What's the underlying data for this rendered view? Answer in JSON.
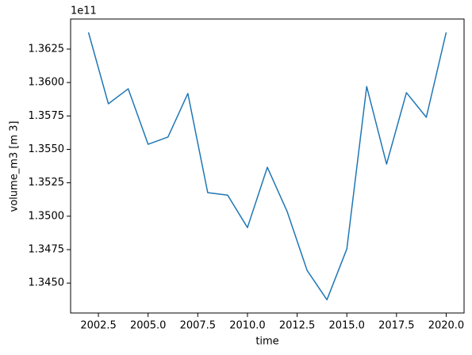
{
  "chart_data": {
    "type": "line",
    "xlabel": "time",
    "ylabel": "volume_m3 [m 3]",
    "y_offset_text": "1e11",
    "x": [
      2002,
      2003,
      2004,
      2005,
      2006,
      2007,
      2008,
      2009,
      2010,
      2011,
      2012,
      2013,
      2014,
      2015,
      2016,
      2017,
      2018,
      2019,
      2020
    ],
    "series": [
      {
        "color": "#1f77b4",
        "values": [
          136375000000,
          135841000000,
          135953000000,
          135538000000,
          135592000000,
          135918000000,
          135176000000,
          135158000000,
          134915000000,
          135366000000,
          135034000000,
          134595000000,
          134375000000,
          134755000000,
          135970000000,
          135390000000,
          135924000000,
          135740000000,
          136375000000
        ]
      }
    ],
    "xlim": [
      2001.1,
      2020.9
    ],
    "xticks": [
      2002.5,
      {
        "value": 2005,
        "label": "2005.0"
      },
      2007.5,
      {
        "value": 2010,
        "label": "2010.0"
      },
      2012.5,
      {
        "value": 2015,
        "label": "2015.0"
      },
      2017.5,
      {
        "value": 2020,
        "label": "2020.0"
      }
    ],
    "ylim": [
      134276000000,
      136475000000
    ],
    "yticks": [
      {
        "value": 134500000000,
        "label": "1.3450"
      },
      {
        "value": 134750000000,
        "label": "1.3475"
      },
      {
        "value": 135000000000,
        "label": "1.3500"
      },
      {
        "value": 135250000000,
        "label": "1.3525"
      },
      {
        "value": 135500000000,
        "label": "1.3550"
      },
      {
        "value": 135750000000,
        "label": "1.3575"
      },
      {
        "value": 136000000000,
        "label": "1.3600"
      },
      {
        "value": 136250000000,
        "label": "1.3625"
      }
    ],
    "grid": false
  }
}
